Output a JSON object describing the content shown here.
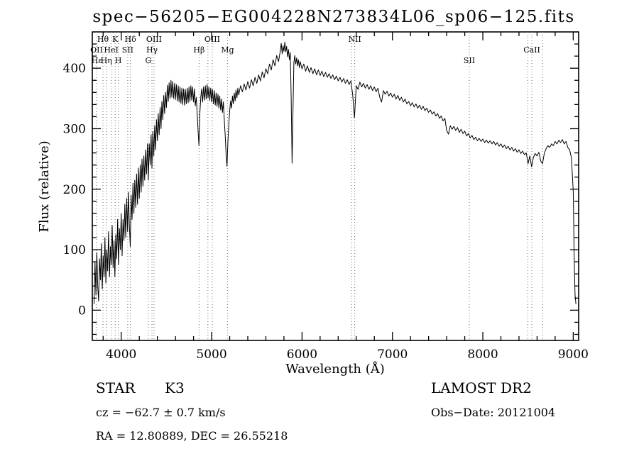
{
  "title": "spec−56205−EG004228N273834L06_sp06−125.fits",
  "annotations": {
    "object_class": "STAR",
    "subclass": "K3",
    "survey": "LAMOST DR2",
    "cz": "cz =  −62.7 ± 0.7 km/s",
    "obs_date": "Obs−Date: 20121004",
    "ra_dec": "RA =  12.80889, DEC =  26.55218"
  },
  "chart_data": {
    "type": "line",
    "title": "spec−56205−EG004228N273834L06_sp06−125.fits",
    "xlabel": "Wavelength (Å)",
    "ylabel": "Flux (relative)",
    "xlim": [
      3680,
      9060
    ],
    "ylim": [
      -50,
      460
    ],
    "xticks": [
      4000,
      5000,
      6000,
      7000,
      8000,
      9000
    ],
    "yticks": [
      0,
      100,
      200,
      300,
      400
    ],
    "grid": false,
    "legend": "none",
    "line_color": "#000000",
    "ref_line_color": "#6b6b6b",
    "ref_lines": [
      3727,
      3798,
      3835,
      3889,
      3933,
      3968,
      4072,
      4101,
      4300,
      4340,
      4363,
      4861,
      4959,
      5007,
      5175,
      6548,
      6583,
      7850,
      8498,
      8542,
      8662
    ],
    "line_labels": [
      {
        "text": "Hθ",
        "wl": 3798,
        "row": 0
      },
      {
        "text": "K",
        "wl": 3933,
        "row": 0
      },
      {
        "text": "Hδ",
        "wl": 4101,
        "row": 0
      },
      {
        "text": "OIII",
        "wl": 4363,
        "row": 0
      },
      {
        "text": "OIII",
        "wl": 5007,
        "row": 0
      },
      {
        "text": "NII",
        "wl": 6583,
        "row": 0
      },
      {
        "text": "OII",
        "wl": 3727,
        "row": 1
      },
      {
        "text": "HeI",
        "wl": 3889,
        "row": 1
      },
      {
        "text": "SII",
        "wl": 4072,
        "row": 1
      },
      {
        "text": "Hγ",
        "wl": 4340,
        "row": 1
      },
      {
        "text": "Hβ",
        "wl": 4861,
        "row": 1
      },
      {
        "text": "Mg",
        "wl": 5175,
        "row": 1
      },
      {
        "text": "CaII",
        "wl": 8542,
        "row": 1
      },
      {
        "text": "Hε",
        "wl": 3730,
        "row": 2
      },
      {
        "text": "Hη",
        "wl": 3835,
        "row": 2
      },
      {
        "text": "H",
        "wl": 3968,
        "row": 2
      },
      {
        "text": "G",
        "wl": 4300,
        "row": 2
      },
      {
        "text": "SII",
        "wl": 7850,
        "row": 2
      }
    ],
    "series": [
      {
        "name": "flux",
        "xy": [
          3700,
          10,
          3710,
          80,
          3720,
          25,
          3730,
          95,
          3740,
          40,
          3750,
          15,
          3760,
          85,
          3770,
          50,
          3780,
          110,
          3790,
          35,
          3800,
          90,
          3810,
          55,
          3820,
          120,
          3830,
          45,
          3840,
          100,
          3850,
          65,
          3860,
          130,
          3870,
          55,
          3880,
          105,
          3890,
          75,
          3900,
          140,
          3910,
          70,
          3920,
          115,
          3930,
          55,
          3940,
          125,
          3950,
          85,
          3960,
          150,
          3970,
          75,
          3980,
          135,
          3990,
          100,
          4000,
          160,
          4010,
          90,
          4020,
          150,
          4030,
          115,
          4040,
          175,
          4050,
          120,
          4060,
          185,
          4070,
          130,
          4080,
          195,
          4090,
          140,
          4100,
          105,
          4110,
          190,
          4120,
          150,
          4130,
          210,
          4140,
          160,
          4150,
          215,
          4160,
          170,
          4170,
          225,
          4180,
          175,
          4190,
          235,
          4200,
          185,
          4210,
          240,
          4220,
          195,
          4230,
          250,
          4240,
          205,
          4250,
          255,
          4260,
          215,
          4270,
          265,
          4280,
          225,
          4290,
          275,
          4300,
          215,
          4310,
          275,
          4320,
          240,
          4330,
          290,
          4340,
          235,
          4350,
          295,
          4360,
          255,
          4370,
          305,
          4380,
          265,
          4390,
          315,
          4400,
          280,
          4410,
          325,
          4420,
          290,
          4430,
          335,
          4440,
          300,
          4450,
          345,
          4460,
          315,
          4470,
          355,
          4480,
          325,
          4490,
          360,
          4500,
          335,
          4510,
          372,
          4520,
          345,
          4530,
          376,
          4540,
          350,
          4550,
          380,
          4560,
          352,
          4570,
          378,
          4580,
          350,
          4590,
          375,
          4600,
          348,
          4610,
          373,
          4620,
          346,
          4630,
          371,
          4640,
          344,
          4650,
          369,
          4660,
          342,
          4670,
          367,
          4680,
          340,
          4690,
          366,
          4700,
          339,
          4710,
          365,
          4720,
          341,
          4730,
          367,
          4740,
          343,
          4750,
          369,
          4760,
          345,
          4770,
          371,
          4780,
          347,
          4790,
          369,
          4800,
          344,
          4810,
          366,
          4820,
          338,
          4830,
          352,
          4840,
          326,
          4850,
          296,
          4860,
          272,
          4870,
          326,
          4880,
          352,
          4890,
          366,
          4900,
          344,
          4910,
          369,
          4920,
          347,
          4930,
          371,
          4940,
          349,
          4950,
          373,
          4960,
          351,
          4970,
          369,
          4980,
          347,
          4990,
          367,
          5000,
          344,
          5010,
          365,
          5020,
          341,
          5030,
          363,
          5040,
          339,
          5050,
          359,
          5060,
          337,
          5070,
          357,
          5080,
          334,
          5090,
          354,
          5100,
          331,
          5110,
          349,
          5120,
          327,
          5130,
          344,
          5140,
          314,
          5150,
          289,
          5160,
          258,
          5170,
          238,
          5180,
          278,
          5190,
          308,
          5200,
          330,
          5210,
          346,
          5220,
          334,
          5230,
          354,
          5240,
          341,
          5250,
          359,
          5260,
          346,
          5270,
          364,
          5280,
          351,
          5290,
          367,
          5300,
          356,
          5320,
          371,
          5340,
          361,
          5360,
          374,
          5380,
          364,
          5400,
          378,
          5420,
          367,
          5440,
          381,
          5460,
          371,
          5480,
          385,
          5500,
          375,
          5520,
          389,
          5540,
          379,
          5560,
          394,
          5580,
          384,
          5600,
          399,
          5620,
          391,
          5640,
          407,
          5660,
          397,
          5680,
          414,
          5700,
          404,
          5720,
          421,
          5740,
          411,
          5760,
          429,
          5770,
          441,
          5780,
          424,
          5790,
          437,
          5800,
          428,
          5810,
          443,
          5820,
          427,
          5830,
          436,
          5840,
          419,
          5850,
          431,
          5860,
          414,
          5870,
          426,
          5880,
          352,
          5890,
          243,
          5900,
          332,
          5910,
          409,
          5920,
          421,
          5930,
          407,
          5940,
          417,
          5950,
          404,
          5960,
          414,
          5970,
          401,
          5980,
          411,
          6000,
          399,
          6020,
          407,
          6040,
          395,
          6060,
          404,
          6080,
          393,
          6100,
          401,
          6120,
          391,
          6140,
          399,
          6160,
          389,
          6180,
          397,
          6200,
          388,
          6220,
          395,
          6240,
          386,
          6260,
          393,
          6280,
          385,
          6300,
          391,
          6320,
          383,
          6340,
          389,
          6360,
          381,
          6380,
          387,
          6400,
          379,
          6420,
          385,
          6440,
          377,
          6460,
          383,
          6480,
          375,
          6500,
          381,
          6520,
          373,
          6540,
          379,
          6560,
          357,
          6580,
          318,
          6600,
          371,
          6620,
          365,
          6640,
          377,
          6660,
          369,
          6680,
          375,
          6700,
          367,
          6720,
          373,
          6740,
          365,
          6760,
          371,
          6780,
          363,
          6800,
          369,
          6820,
          361,
          6840,
          367,
          6860,
          352,
          6880,
          344,
          6900,
          363,
          6920,
          357,
          6940,
          362,
          6960,
          354,
          6980,
          359,
          7000,
          352,
          7020,
          357,
          7040,
          349,
          7060,
          355,
          7080,
          347,
          7100,
          352,
          7120,
          344,
          7140,
          349,
          7160,
          341,
          7180,
          345,
          7200,
          338,
          7220,
          343,
          7240,
          336,
          7260,
          341,
          7280,
          334,
          7300,
          339,
          7320,
          332,
          7340,
          337,
          7360,
          330,
          7380,
          334,
          7400,
          327,
          7420,
          331,
          7440,
          324,
          7460,
          328,
          7480,
          321,
          7500,
          325,
          7520,
          317,
          7540,
          321,
          7560,
          313,
          7580,
          317,
          7600,
          297,
          7620,
          291,
          7640,
          305,
          7660,
          299,
          7680,
          304,
          7700,
          297,
          7720,
          302,
          7740,
          294,
          7760,
          299,
          7780,
          292,
          7800,
          296,
          7820,
          288,
          7840,
          292,
          7860,
          285,
          7880,
          289,
          7900,
          282,
          7920,
          286,
          7940,
          280,
          7960,
          284,
          7980,
          279,
          8000,
          283,
          8020,
          277,
          8040,
          281,
          8060,
          276,
          8080,
          280,
          8100,
          275,
          8120,
          279,
          8140,
          273,
          8160,
          277,
          8180,
          271,
          8200,
          275,
          8220,
          269,
          8240,
          273,
          8260,
          267,
          8280,
          271,
          8300,
          265,
          8320,
          269,
          8340,
          263,
          8360,
          267,
          8380,
          261,
          8400,
          265,
          8420,
          259,
          8440,
          263,
          8460,
          257,
          8480,
          260,
          8500,
          242,
          8520,
          255,
          8540,
          237,
          8560,
          253,
          8580,
          259,
          8600,
          255,
          8620,
          261,
          8640,
          247,
          8660,
          242,
          8680,
          259,
          8700,
          267,
          8720,
          272,
          8740,
          269,
          8760,
          275,
          8780,
          272,
          8800,
          279,
          8820,
          275,
          8840,
          281,
          8860,
          277,
          8880,
          282,
          8900,
          275,
          8920,
          279,
          8940,
          269,
          8960,
          265,
          8980,
          252,
          9000,
          196,
          9010,
          92,
          9020,
          26,
          9030,
          10
        ]
      }
    ]
  }
}
